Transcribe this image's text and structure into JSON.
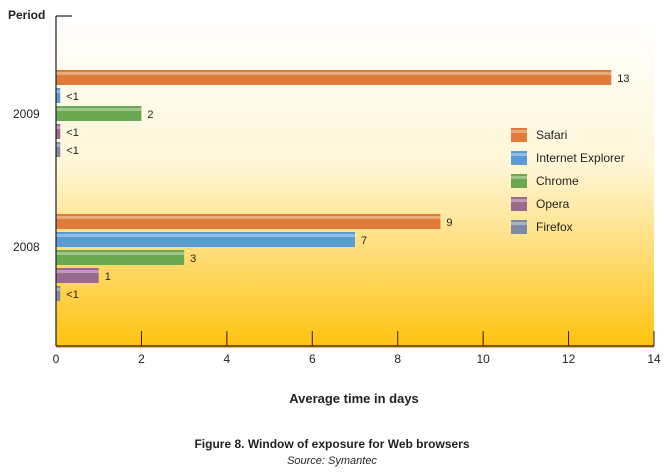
{
  "chart_data": {
    "type": "bar",
    "orientation": "horizontal",
    "y_axis_title": "Period",
    "xlabel": "Average time in days",
    "xlim": [
      0,
      14
    ],
    "xticks": [
      0,
      2,
      4,
      6,
      8,
      10,
      12,
      14
    ],
    "categories": [
      "2009",
      "2008"
    ],
    "series": [
      {
        "name": "Safari",
        "color": "#e07b39",
        "values": [
          13,
          9
        ],
        "labels": [
          "13",
          "9"
        ]
      },
      {
        "name": "Internet Explorer",
        "color": "#5b9bd5",
        "values": [
          0.1,
          7
        ],
        "labels": [
          "<1",
          "7"
        ]
      },
      {
        "name": "Chrome",
        "color": "#6aa84f",
        "values": [
          2,
          3
        ],
        "labels": [
          "2",
          "3"
        ]
      },
      {
        "name": "Opera",
        "color": "#9b6b8f",
        "values": [
          0.1,
          1
        ],
        "labels": [
          "<1",
          "1"
        ]
      },
      {
        "name": "Firefox",
        "color": "#7e8aa2",
        "values": [
          0.1,
          0.1
        ],
        "labels": [
          "<1",
          "<1"
        ]
      }
    ],
    "legend_position": "right",
    "background_gradient": [
      "#ffffff",
      "#ffc20e"
    ]
  },
  "caption": "Figure 8. Window of exposure for Web browsers",
  "source": "Source: Symantec"
}
